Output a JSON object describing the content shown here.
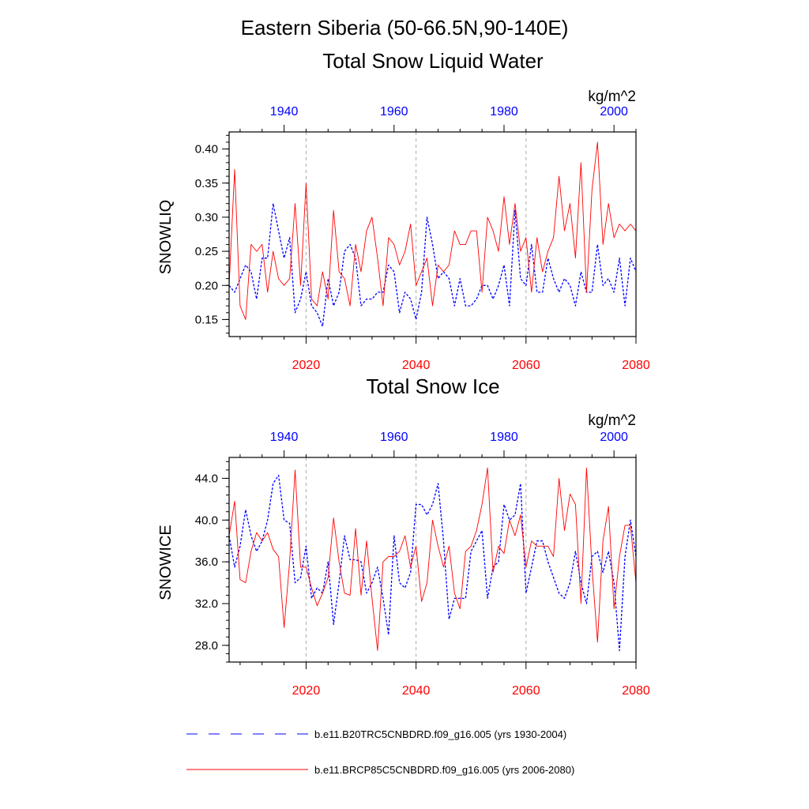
{
  "main_title": "Eastern Siberia (50-66.5N,90-140E)",
  "colors": {
    "historical": "#0000ff",
    "future": "#ff0000",
    "grid": "#aaaaaa"
  },
  "legend": {
    "historical_label": "b.e11.B20TRC5CNBDRD.f09_g16.005 (yrs 1930-2004)",
    "future_label": "b.e11.BRCP85C5CNBDRD.f09_g16.005 (yrs 2006-2080)"
  },
  "chart_data": [
    {
      "type": "line",
      "title": "Total Snow Liquid Water",
      "units": "kg/m^2",
      "ylabel": "SNOWLIQ",
      "ylim": [
        0.125,
        0.425
      ],
      "yticks": [
        "0.15",
        "0.20",
        "0.25",
        "0.30",
        "0.35",
        "0.40"
      ],
      "ytick_values": [
        0.15,
        0.2,
        0.25,
        0.3,
        0.35,
        0.4
      ],
      "bottom_xlim": [
        2006,
        2080
      ],
      "bottom_xticks": [
        "2020",
        "2040",
        "2060",
        "2080"
      ],
      "bottom_xtick_values": [
        2020,
        2040,
        2060,
        2080
      ],
      "top_xlim": [
        1930,
        2004
      ],
      "top_xticks": [
        "1940",
        "1960",
        "1980",
        "2000"
      ],
      "top_xtick_values": [
        1940,
        1960,
        1980,
        2000
      ],
      "series": [
        {
          "name": "b.e11.B20TRC5CNBDRD.f09_g16.005 (yrs 1930-2004)",
          "style": "dashed",
          "values": [
            0.2,
            0.19,
            0.21,
            0.23,
            0.22,
            0.18,
            0.24,
            0.24,
            0.32,
            0.28,
            0.24,
            0.27,
            0.16,
            0.18,
            0.22,
            0.17,
            0.16,
            0.14,
            0.21,
            0.17,
            0.19,
            0.25,
            0.26,
            0.24,
            0.17,
            0.18,
            0.18,
            0.19,
            0.19,
            0.23,
            0.22,
            0.16,
            0.19,
            0.18,
            0.15,
            0.19,
            0.3,
            0.26,
            0.21,
            0.22,
            0.21,
            0.17,
            0.21,
            0.17,
            0.17,
            0.18,
            0.2,
            0.2,
            0.18,
            0.2,
            0.23,
            0.17,
            0.31,
            0.21,
            0.2,
            0.26,
            0.19,
            0.19,
            0.24,
            0.21,
            0.19,
            0.21,
            0.2,
            0.17,
            0.22,
            0.19,
            0.19,
            0.26,
            0.2,
            0.21,
            0.19,
            0.24,
            0.17,
            0.24,
            0.22
          ]
        },
        {
          "name": "b.e11.BRCP85C5CNBDRD.f09_g16.005 (yrs 2006-2080)",
          "style": "solid",
          "values": [
            0.2,
            0.37,
            0.17,
            0.15,
            0.26,
            0.25,
            0.26,
            0.19,
            0.25,
            0.21,
            0.2,
            0.21,
            0.32,
            0.2,
            0.35,
            0.18,
            0.17,
            0.22,
            0.18,
            0.31,
            0.22,
            0.21,
            0.17,
            0.26,
            0.22,
            0.28,
            0.3,
            0.24,
            0.17,
            0.27,
            0.26,
            0.23,
            0.25,
            0.29,
            0.2,
            0.22,
            0.24,
            0.17,
            0.23,
            0.22,
            0.23,
            0.28,
            0.26,
            0.26,
            0.28,
            0.28,
            0.19,
            0.3,
            0.28,
            0.25,
            0.33,
            0.26,
            0.32,
            0.25,
            0.27,
            0.19,
            0.27,
            0.22,
            0.25,
            0.27,
            0.36,
            0.28,
            0.32,
            0.24,
            0.38,
            0.19,
            0.34,
            0.41,
            0.26,
            0.32,
            0.27,
            0.29,
            0.28,
            0.29,
            0.28
          ]
        }
      ]
    },
    {
      "type": "line",
      "title": "Total Snow Ice",
      "units": "kg/m^2",
      "ylabel": "SNOWICE",
      "ylim": [
        26.4,
        46.0
      ],
      "yticks": [
        "28.0",
        "32.0",
        "36.0",
        "40.0",
        "44.0"
      ],
      "ytick_values": [
        28.0,
        32.0,
        36.0,
        40.0,
        44.0
      ],
      "bottom_xlim": [
        2006,
        2080
      ],
      "bottom_xticks": [
        "2020",
        "2040",
        "2060",
        "2080"
      ],
      "bottom_xtick_values": [
        2020,
        2040,
        2060,
        2080
      ],
      "top_xlim": [
        1930,
        2004
      ],
      "top_xticks": [
        "1940",
        "1960",
        "1980",
        "2000"
      ],
      "top_xtick_values": [
        1940,
        1960,
        1980,
        2000
      ],
      "series": [
        {
          "name": "b.e11.B20TRC5CNBDRD.f09_g16.005 (yrs 1930-2004)",
          "style": "dashed",
          "values": [
            38.5,
            35.5,
            37.5,
            41.0,
            38.5,
            37.0,
            38.0,
            40.0,
            43.5,
            44.3,
            40.0,
            39.7,
            34.0,
            34.5,
            37.5,
            32.5,
            33.5,
            33.0,
            36.0,
            30.0,
            34.0,
            38.5,
            36.2,
            36.2,
            36.0,
            33.0,
            34.0,
            35.5,
            32.5,
            29.0,
            38.5,
            34.0,
            33.5,
            35.0,
            41.5,
            41.5,
            40.5,
            41.5,
            43.5,
            38.0,
            30.5,
            32.5,
            32.5,
            32.5,
            37.0,
            38.0,
            39.0,
            32.5,
            35.5,
            36.0,
            41.5,
            40.0,
            40.5,
            43.5,
            33.0,
            35.5,
            38.0,
            38.0,
            36.0,
            34.5,
            33.0,
            32.5,
            34.0,
            37.0,
            34.0,
            32.0,
            36.5,
            37.0,
            35.0,
            37.0,
            34.0,
            27.5,
            36.5,
            40.0,
            36.5
          ]
        },
        {
          "name": "b.e11.BRCP85C5CNBDRD.f09_g16.005 (yrs 2006-2080)",
          "style": "solid",
          "values": [
            38.5,
            41.8,
            34.3,
            34.0,
            37.0,
            38.8,
            38.0,
            38.8,
            37.2,
            36.5,
            29.7,
            36.0,
            44.8,
            35.5,
            35.5,
            33.5,
            31.8,
            33.0,
            34.5,
            40.2,
            36.0,
            33.0,
            32.8,
            39.2,
            32.8,
            38.0,
            32.5,
            27.5,
            36.0,
            36.5,
            36.5,
            37.0,
            38.5,
            35.5,
            37.5,
            32.2,
            34.0,
            40.0,
            37.5,
            35.5,
            37.5,
            33.0,
            31.5,
            37.0,
            37.5,
            39.0,
            41.5,
            45.0,
            35.0,
            37.5,
            36.8,
            40.0,
            38.5,
            40.5,
            35.5,
            38.0,
            37.5,
            37.5,
            37.5,
            36.5,
            44.0,
            39.0,
            42.5,
            41.5,
            32.0,
            45.0,
            35.5,
            28.3,
            38.0,
            41.3,
            31.5,
            36.5,
            39.5,
            39.5,
            34.0
          ]
        }
      ]
    }
  ]
}
